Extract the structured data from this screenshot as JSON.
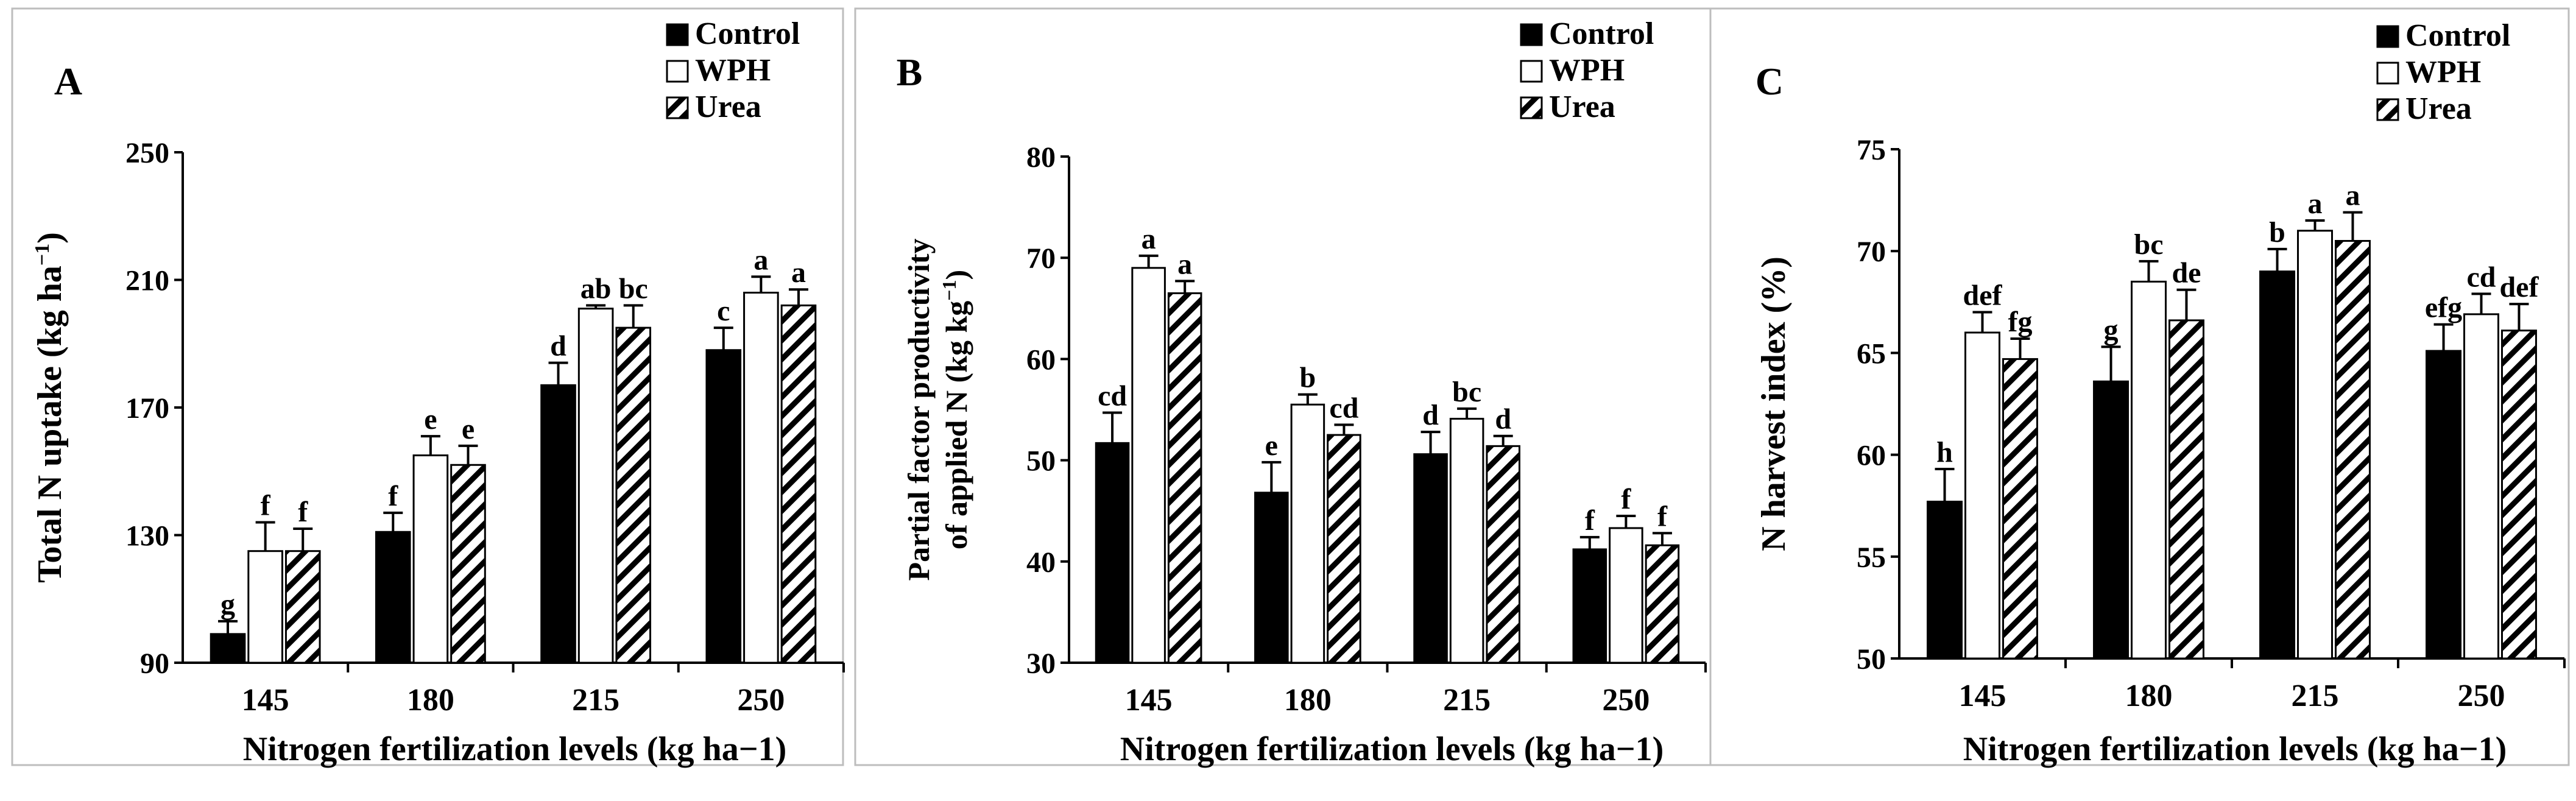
{
  "colors": {
    "control": "#000000",
    "wph": "#ffffff",
    "urea_hatch": "#000000",
    "frame": "#bdbdbd"
  },
  "chart_data": [
    {
      "type": "bar",
      "panel": "A",
      "title": "",
      "xlabel": "Nitrogen fertilization levels (kg ha−1)",
      "ylabel_main": "Total N uptake (kg ha",
      "ylabel_sup": "−1",
      "ylabel_close": ")",
      "ylim": [
        90,
        250
      ],
      "yticks": [
        "90",
        "130",
        "170",
        "210",
        "250"
      ],
      "categories": [
        "145",
        "180",
        "215",
        "250"
      ],
      "legend": [
        "Control",
        "WPH",
        "Urea"
      ],
      "series": [
        {
          "name": "Control",
          "values": [
            99,
            131,
            177,
            188
          ],
          "errors": [
            4,
            6,
            7,
            7
          ],
          "letters": [
            "g",
            "f",
            "d",
            "c"
          ]
        },
        {
          "name": "WPH",
          "values": [
            125,
            155,
            201,
            206
          ],
          "errors": [
            9,
            6,
            1,
            5
          ],
          "letters": [
            "f",
            "e",
            "ab",
            "a"
          ]
        },
        {
          "name": "Urea",
          "values": [
            125,
            152,
            195,
            202
          ],
          "errors": [
            7,
            6,
            7,
            5
          ],
          "letters": [
            "f",
            "e",
            "bc",
            "a"
          ]
        }
      ]
    },
    {
      "type": "bar",
      "panel": "B",
      "title": "",
      "xlabel": "Nitrogen fertilization levels (kg ha−1)",
      "ylabel_line1": "Partial factor productivity",
      "ylabel_line2_main": "of applied N (kg  kg",
      "ylabel_sup": "−1",
      "ylabel_close": ")",
      "ylim": [
        30,
        80
      ],
      "yticks": [
        "30",
        "40",
        "50",
        "60",
        "70",
        "80"
      ],
      "categories": [
        "145",
        "180",
        "215",
        "250"
      ],
      "legend": [
        "Control",
        "WPH",
        "Urea"
      ],
      "series": [
        {
          "name": "Control",
          "values": [
            51.7,
            46.8,
            50.6,
            41.2
          ],
          "errors": [
            3.0,
            3.0,
            2.2,
            1.2
          ],
          "letters": [
            "cd",
            "e",
            "d",
            "f"
          ]
        },
        {
          "name": "WPH",
          "values": [
            69.0,
            55.5,
            54.1,
            43.3
          ],
          "errors": [
            1.2,
            1.0,
            1.0,
            1.2
          ],
          "letters": [
            "a",
            "b",
            "bc",
            "f"
          ]
        },
        {
          "name": "Urea",
          "values": [
            66.5,
            52.5,
            51.4,
            41.6
          ],
          "errors": [
            1.2,
            1.0,
            1.0,
            1.2
          ],
          "letters": [
            "a",
            "cd",
            "d",
            "f"
          ]
        }
      ]
    },
    {
      "type": "bar",
      "panel": "C",
      "title": "",
      "xlabel": "Nitrogen fertilization levels (kg ha−1)",
      "ylabel_main": "N  harvest index (%)",
      "ylim": [
        50,
        75
      ],
      "yticks": [
        "50",
        "55",
        "60",
        "65",
        "70",
        "75"
      ],
      "categories": [
        "145",
        "180",
        "215",
        "250"
      ],
      "legend": [
        "Control",
        "WPH",
        "Urea"
      ],
      "series": [
        {
          "name": "Control",
          "values": [
            57.7,
            63.6,
            69.0,
            65.1
          ],
          "errors": [
            1.6,
            1.7,
            1.1,
            1.3
          ],
          "letters": [
            "h",
            "g",
            "b",
            "efg"
          ]
        },
        {
          "name": "WPH",
          "values": [
            66.0,
            68.5,
            71.0,
            66.9
          ],
          "errors": [
            1.0,
            1.0,
            0.5,
            1.0
          ],
          "letters": [
            "def",
            "bc",
            "a",
            "cd"
          ]
        },
        {
          "name": "Urea",
          "values": [
            64.7,
            66.6,
            70.5,
            66.1
          ],
          "errors": [
            1.0,
            1.5,
            1.4,
            1.3
          ],
          "letters": [
            "fg",
            "de",
            "a",
            "def"
          ]
        }
      ]
    }
  ]
}
